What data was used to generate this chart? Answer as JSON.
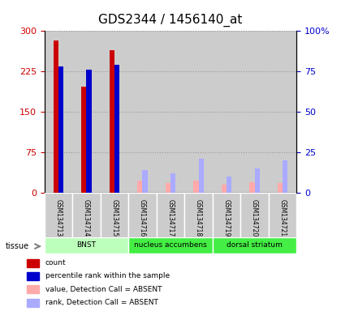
{
  "title": "GDS2344 / 1456140_at",
  "samples": [
    "GSM134713",
    "GSM134714",
    "GSM134715",
    "GSM134716",
    "GSM134717",
    "GSM134718",
    "GSM134719",
    "GSM134720",
    "GSM134721"
  ],
  "count_values": [
    283,
    197,
    265,
    0,
    0,
    0,
    0,
    0,
    0
  ],
  "percentile_rank": [
    78,
    76,
    79,
    0,
    0,
    0,
    0,
    0,
    0
  ],
  "absent_value": [
    0,
    0,
    0,
    22,
    18,
    22,
    15,
    20,
    18
  ],
  "absent_rank": [
    0,
    0,
    0,
    14,
    12,
    21,
    10,
    15,
    20
  ],
  "tissues": [
    {
      "label": "BNST",
      "start": 0,
      "end": 3,
      "color": "#bbffbb"
    },
    {
      "label": "nucleus accumbens",
      "start": 3,
      "end": 6,
      "color": "#44ee44"
    },
    {
      "label": "dorsal striatum",
      "start": 6,
      "end": 9,
      "color": "#44ee44"
    }
  ],
  "ylim_left": [
    0,
    300
  ],
  "ylim_right": [
    0,
    100
  ],
  "yticks_left": [
    0,
    75,
    150,
    225,
    300
  ],
  "yticks_right": [
    0,
    25,
    50,
    75,
    100
  ],
  "bar_color_count": "#cc0000",
  "bar_color_rank": "#0000cc",
  "bar_color_absent_val": "#ffaaaa",
  "bar_color_absent_rank": "#aaaaff",
  "bg_sample": "#cccccc",
  "gridline_color": "#999999",
  "bar_width": 0.18
}
